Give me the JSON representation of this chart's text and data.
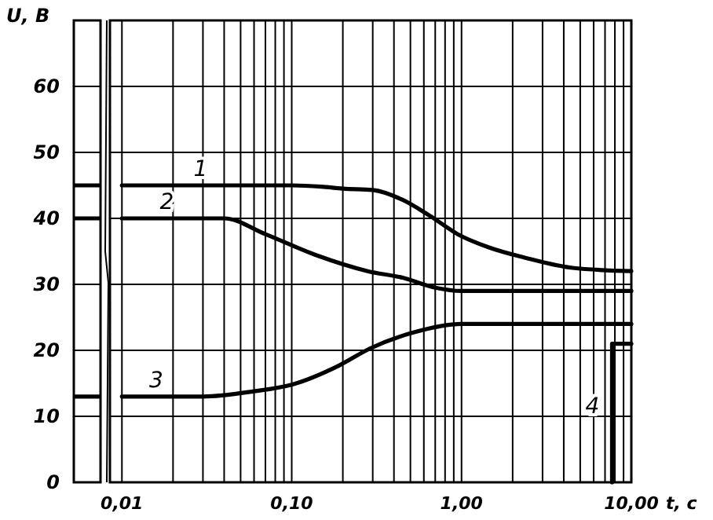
{
  "chart_data": {
    "type": "line",
    "xlabel": "t, c",
    "ylabel": "U, В",
    "log": "x",
    "grid": true,
    "marker": "none",
    "line_style": "solid",
    "xlim": [
      0.0085,
      10
    ],
    "ylim": [
      0,
      70
    ],
    "xticks": [
      {
        "value": 0.01,
        "label": "0,01"
      },
      {
        "value": 0.02,
        "label": null
      },
      {
        "value": 0.03,
        "label": null
      },
      {
        "value": 0.04,
        "label": null
      },
      {
        "value": 0.05,
        "label": null
      },
      {
        "value": 0.06,
        "label": null
      },
      {
        "value": 0.07,
        "label": null
      },
      {
        "value": 0.08,
        "label": null
      },
      {
        "value": 0.09,
        "label": null
      },
      {
        "value": 0.1,
        "label": "0,10"
      },
      {
        "value": 0.2,
        "label": null
      },
      {
        "value": 0.3,
        "label": null
      },
      {
        "value": 0.4,
        "label": null
      },
      {
        "value": 0.5,
        "label": null
      },
      {
        "value": 0.6,
        "label": null
      },
      {
        "value": 0.7,
        "label": null
      },
      {
        "value": 0.8,
        "label": null
      },
      {
        "value": 0.9,
        "label": null
      },
      {
        "value": 1,
        "label": "1,00"
      },
      {
        "value": 2,
        "label": null
      },
      {
        "value": 3,
        "label": null
      },
      {
        "value": 4,
        "label": null
      },
      {
        "value": 5,
        "label": null
      },
      {
        "value": 6,
        "label": null
      },
      {
        "value": 7,
        "label": null
      },
      {
        "value": 8,
        "label": null
      },
      {
        "value": 9,
        "label": null
      },
      {
        "value": 10,
        "label": "10,00"
      }
    ],
    "yticks": [
      0,
      10,
      20,
      30,
      40,
      50,
      60,
      {
        "value": 70,
        "label": null
      }
    ],
    "series": [
      {
        "name": "1",
        "color": "#000000",
        "x": [
          0.01,
          0.1,
          0.15,
          0.2,
          0.3,
          0.45,
          0.65,
          0.95,
          1.45,
          2.4,
          4.5,
          10
        ],
        "values": [
          45,
          45,
          44.8,
          44.5,
          44.3,
          42.8,
          40.4,
          37.6,
          35.6,
          34,
          32.5,
          32
        ]
      },
      {
        "name": "2",
        "color": "#000000",
        "x": [
          0.01,
          0.04,
          0.07,
          0.14,
          0.28,
          0.45,
          0.7,
          1,
          10
        ],
        "values": [
          40,
          40,
          37.6,
          34.4,
          32,
          31,
          29.5,
          29,
          29
        ]
      },
      {
        "name": "3",
        "color": "#000000",
        "x": [
          0.01,
          0.03,
          0.06,
          0.1,
          0.19,
          0.29,
          0.52,
          1,
          10
        ],
        "values": [
          13,
          13,
          13.8,
          14.8,
          17.7,
          20.3,
          22.7,
          24,
          24
        ]
      },
      {
        "name": "4",
        "color": "#000000",
        "x": [
          7.7,
          7.7,
          10
        ],
        "values": [
          0,
          21,
          21
        ]
      }
    ]
  }
}
